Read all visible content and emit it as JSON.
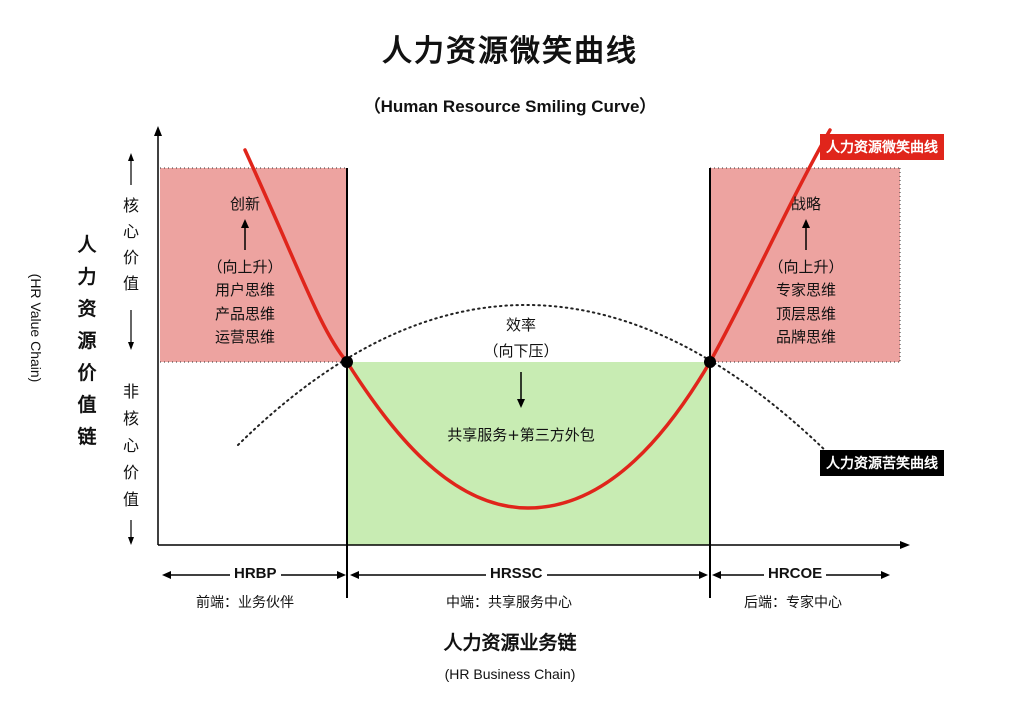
{
  "header": {
    "title": "人力资源微笑曲线",
    "subtitle": "（Human Resource Smiling Curve）"
  },
  "y_axis": {
    "title_chars": [
      "人",
      "力",
      "资",
      "源",
      "价",
      "值",
      "链"
    ],
    "title_en": "(HR Value Chain)",
    "core_chars": [
      "核",
      "心",
      "价",
      "值"
    ],
    "noncore_chars": [
      "非",
      "核",
      "心",
      "价",
      "值"
    ]
  },
  "left_box": {
    "top": "创新",
    "lines": [
      "（向上升）",
      "用户思维",
      "产品思维",
      "运营思维"
    ]
  },
  "right_box": {
    "top": "战略",
    "lines": [
      "（向上升）",
      "专家思维",
      "顶层思维",
      "品牌思维"
    ]
  },
  "middle": {
    "top": "效率",
    "sub": "（向下压）",
    "main": "共享服务+第三方外包"
  },
  "legend": {
    "smile": "人力资源微笑曲线",
    "frown": "人力资源苦笑曲线"
  },
  "segments": [
    {
      "code": "HRBP",
      "desc": "前端：业务伙伴"
    },
    {
      "code": "HRSSC",
      "desc": "中端：共享服务中心"
    },
    {
      "code": "HRCOE",
      "desc": "后端：专家中心"
    }
  ],
  "x_axis": {
    "title": "人力资源业务链",
    "title_en": "(HR Business Chain)"
  },
  "colors": {
    "pink": "#eda3a0",
    "green": "#c8ecb3",
    "red": "#e0251b",
    "black": "#000000"
  }
}
